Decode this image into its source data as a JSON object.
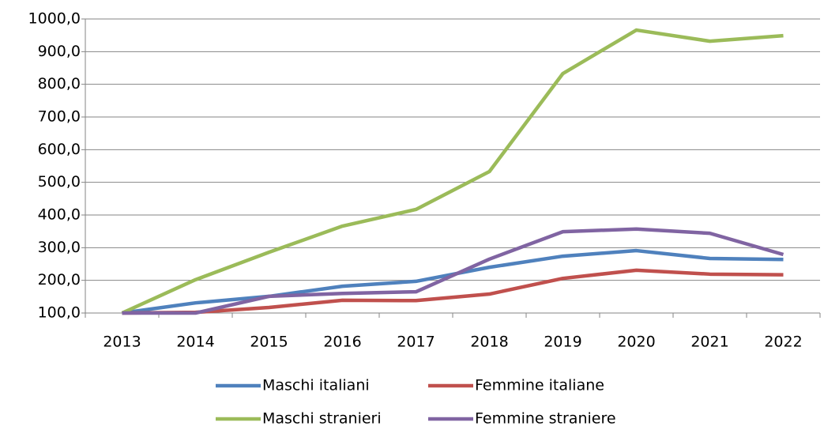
{
  "chart_data": {
    "type": "line",
    "categories": [
      "2013",
      "2014",
      "2015",
      "2016",
      "2017",
      "2018",
      "2019",
      "2020",
      "2021",
      "2022"
    ],
    "series": [
      {
        "name": "Maschi italiani",
        "color": "#4f81bd",
        "values": [
          100,
          131,
          151,
          182,
          197,
          240,
          274,
          291,
          267,
          264
        ]
      },
      {
        "name": "Femmine italiane",
        "color": "#c0504d",
        "values": [
          100,
          102,
          117,
          139,
          138,
          158,
          206,
          231,
          219,
          217
        ]
      },
      {
        "name": "Maschi stranieri",
        "color": "#9bbb59",
        "values": [
          100,
          202,
          286,
          366,
          417,
          533,
          833,
          966,
          932,
          949
        ]
      },
      {
        "name": "Femmine straniere",
        "color": "#8064a2",
        "values": [
          100,
          100,
          151,
          160,
          165,
          265,
          349,
          357,
          344,
          279
        ]
      }
    ],
    "ylim": [
      100,
      1000
    ],
    "yticks": [
      {
        "value": 100,
        "label": "100,0"
      },
      {
        "value": 200,
        "label": "200,0"
      },
      {
        "value": 300,
        "label": "300,0"
      },
      {
        "value": 400,
        "label": "400,0"
      },
      {
        "value": 500,
        "label": "500,0"
      },
      {
        "value": 600,
        "label": "600,0"
      },
      {
        "value": 700,
        "label": "700,0"
      },
      {
        "value": 800,
        "label": "800,0"
      },
      {
        "value": 900,
        "label": "900,0"
      },
      {
        "value": 1000,
        "label": "1000,0"
      }
    ],
    "grid": true,
    "legend": "bottom"
  }
}
